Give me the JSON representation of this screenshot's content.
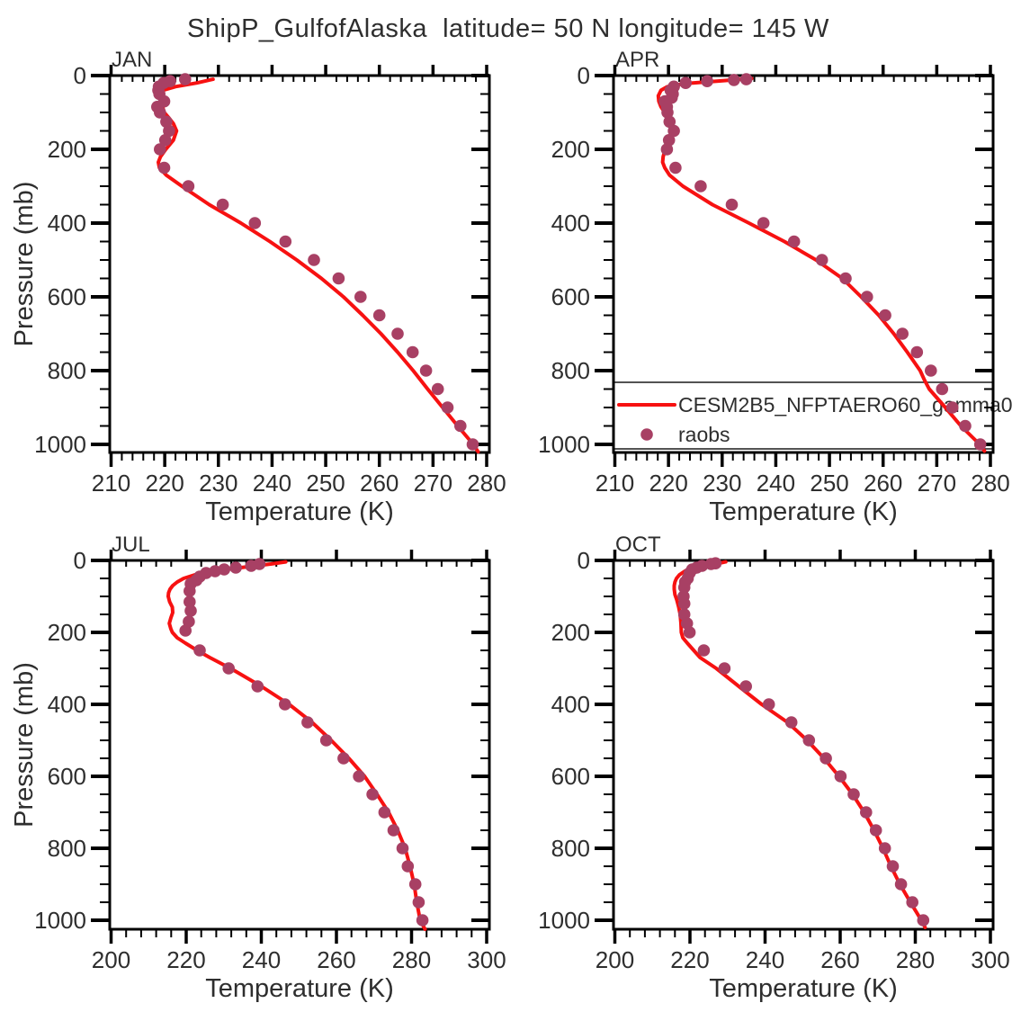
{
  "chart_data": {
    "type": "line",
    "title": "ShipP_GulfofAlaska  latitude= 50 N longitude= 145 W",
    "xlabel": "Temperature (K)",
    "ylabel": "Pressure (mb)",
    "colors": {
      "model_line": "#f71111",
      "raobs_marker": "#a84064",
      "text": "#2e2e2e",
      "axis": "#000000"
    },
    "y_axis": {
      "min": 0,
      "max": 1000,
      "inverted": true,
      "major_ticks": [
        0,
        200,
        400,
        600,
        800,
        1000
      ],
      "minor_step": 50
    },
    "legend": {
      "position": "inside-APR-panel-bottom",
      "entries": [
        {
          "label": "CESM2B5_NFPTAERO60_gamma0",
          "type": "line",
          "color": "#f71111"
        },
        {
          "label": "raobs",
          "type": "marker",
          "color": "#a84064"
        }
      ]
    },
    "panels": [
      {
        "label": "JAN",
        "x_axis": {
          "min": 210,
          "max": 280,
          "major_ticks": [
            210,
            220,
            230,
            240,
            250,
            260,
            270,
            280
          ],
          "major_step": 10,
          "minor_step": 2
        },
        "model_line": [
          [
            10,
            229.0
          ],
          [
            20,
            226.0
          ],
          [
            30,
            222.0
          ],
          [
            40,
            219.6
          ],
          [
            50,
            219.2
          ],
          [
            60,
            219.4
          ],
          [
            70,
            220.0
          ],
          [
            85,
            219.6
          ],
          [
            100,
            219.9
          ],
          [
            115,
            220.8
          ],
          [
            130,
            221.6
          ],
          [
            150,
            222.2
          ],
          [
            175,
            221.6
          ],
          [
            200,
            220.2
          ],
          [
            220,
            219.2
          ],
          [
            235,
            218.8
          ],
          [
            250,
            219.0
          ],
          [
            270,
            220.3
          ],
          [
            300,
            223.2
          ],
          [
            350,
            228.3
          ],
          [
            400,
            234.2
          ],
          [
            450,
            239.6
          ],
          [
            500,
            244.6
          ],
          [
            550,
            249.2
          ],
          [
            600,
            253.3
          ],
          [
            650,
            256.9
          ],
          [
            700,
            260.3
          ],
          [
            750,
            263.4
          ],
          [
            800,
            266.3
          ],
          [
            850,
            269.0
          ],
          [
            900,
            271.8
          ],
          [
            950,
            274.6
          ],
          [
            1000,
            277.5
          ],
          [
            1020,
            278.4
          ]
        ],
        "raobs": [
          [
            10,
            223.8
          ],
          [
            15,
            221.0
          ],
          [
            20,
            219.8
          ],
          [
            30,
            218.9
          ],
          [
            40,
            218.8
          ],
          [
            50,
            219.0
          ],
          [
            70,
            219.9
          ],
          [
            85,
            218.6
          ],
          [
            100,
            219.1
          ],
          [
            125,
            220.3
          ],
          [
            150,
            220.8
          ],
          [
            175,
            220.1
          ],
          [
            200,
            219.1
          ],
          [
            250,
            219.9
          ],
          [
            300,
            224.4
          ],
          [
            350,
            230.8
          ],
          [
            400,
            236.8
          ],
          [
            450,
            242.5
          ],
          [
            500,
            247.8
          ],
          [
            550,
            252.4
          ],
          [
            600,
            256.5
          ],
          [
            650,
            260.0
          ],
          [
            700,
            263.4
          ],
          [
            750,
            266.2
          ],
          [
            800,
            268.7
          ],
          [
            850,
            270.9
          ],
          [
            900,
            272.7
          ],
          [
            950,
            275.1
          ],
          [
            1000,
            277.4
          ]
        ]
      },
      {
        "label": "APR",
        "x_axis": {
          "min": 210,
          "max": 280,
          "major_ticks": [
            210,
            220,
            230,
            240,
            250,
            260,
            270,
            280
          ],
          "major_step": 10,
          "minor_step": 2
        },
        "model_line": [
          [
            8,
            235.5
          ],
          [
            15,
            229.0
          ],
          [
            20,
            224.5
          ],
          [
            25,
            221.5
          ],
          [
            30,
            219.8
          ],
          [
            40,
            218.6
          ],
          [
            55,
            218.1
          ],
          [
            70,
            218.2
          ],
          [
            85,
            218.6
          ],
          [
            100,
            219.3
          ],
          [
            115,
            220.0
          ],
          [
            135,
            220.6
          ],
          [
            150,
            220.7
          ],
          [
            165,
            220.5
          ],
          [
            180,
            220.2
          ],
          [
            200,
            219.4
          ],
          [
            220,
            219.0
          ],
          [
            235,
            218.9
          ],
          [
            250,
            219.3
          ],
          [
            270,
            220.2
          ],
          [
            300,
            222.7
          ],
          [
            350,
            228.2
          ],
          [
            400,
            235.0
          ],
          [
            450,
            241.6
          ],
          [
            500,
            247.5
          ],
          [
            550,
            252.4
          ],
          [
            600,
            255.9
          ],
          [
            650,
            259.2
          ],
          [
            700,
            262.0
          ],
          [
            750,
            264.5
          ],
          [
            800,
            266.9
          ],
          [
            825,
            267.7
          ],
          [
            850,
            268.6
          ],
          [
            900,
            271.6
          ],
          [
            950,
            274.5
          ],
          [
            1000,
            278.0
          ],
          [
            1018,
            278.9
          ]
        ],
        "raobs": [
          [
            10,
            234.5
          ],
          [
            12,
            232.2
          ],
          [
            15,
            227.2
          ],
          [
            20,
            223.2
          ],
          [
            30,
            221.0
          ],
          [
            40,
            220.4
          ],
          [
            50,
            220.8
          ],
          [
            60,
            220.6
          ],
          [
            70,
            219.3
          ],
          [
            85,
            219.7
          ],
          [
            100,
            219.8
          ],
          [
            125,
            220.2
          ],
          [
            150,
            221.0
          ],
          [
            175,
            220.1
          ],
          [
            200,
            219.7
          ],
          [
            250,
            221.3
          ],
          [
            300,
            226.0
          ],
          [
            350,
            231.8
          ],
          [
            400,
            237.7
          ],
          [
            450,
            243.4
          ],
          [
            500,
            248.6
          ],
          [
            550,
            253.0
          ],
          [
            600,
            257.0
          ],
          [
            650,
            260.4
          ],
          [
            700,
            263.6
          ],
          [
            750,
            266.3
          ],
          [
            800,
            268.9
          ],
          [
            850,
            271.0
          ],
          [
            900,
            272.9
          ],
          [
            950,
            275.3
          ],
          [
            1000,
            278.1
          ]
        ]
      },
      {
        "label": "JUL",
        "x_axis": {
          "min": 200,
          "max": 300,
          "major_ticks": [
            200,
            220,
            240,
            260,
            280,
            300
          ],
          "major_step": 20,
          "minor_step": 4
        },
        "model_line": [
          [
            4,
            246.5
          ],
          [
            10,
            242.5
          ],
          [
            15,
            238.5
          ],
          [
            20,
            234.5
          ],
          [
            25,
            230.5
          ],
          [
            30,
            227.0
          ],
          [
            40,
            222.3
          ],
          [
            50,
            219.3
          ],
          [
            60,
            217.6
          ],
          [
            70,
            216.4
          ],
          [
            80,
            215.7
          ],
          [
            90,
            215.3
          ],
          [
            100,
            215.2
          ],
          [
            115,
            215.6
          ],
          [
            130,
            216.3
          ],
          [
            145,
            216.4
          ],
          [
            160,
            215.9
          ],
          [
            175,
            215.5
          ],
          [
            190,
            215.9
          ],
          [
            200,
            216.3
          ],
          [
            215,
            217.6
          ],
          [
            230,
            219.8
          ],
          [
            250,
            222.9
          ],
          [
            270,
            226.3
          ],
          [
            300,
            231.8
          ],
          [
            350,
            240.0
          ],
          [
            400,
            247.4
          ],
          [
            450,
            253.5
          ],
          [
            500,
            258.6
          ],
          [
            550,
            263.3
          ],
          [
            600,
            267.5
          ],
          [
            650,
            270.8
          ],
          [
            700,
            273.9
          ],
          [
            750,
            276.3
          ],
          [
            800,
            278.3
          ],
          [
            850,
            279.6
          ],
          [
            900,
            280.7
          ],
          [
            950,
            281.4
          ],
          [
            1000,
            282.3
          ],
          [
            1025,
            283.6
          ]
        ],
        "raobs": [
          [
            10,
            239.5
          ],
          [
            15,
            237.3
          ],
          [
            20,
            233.2
          ],
          [
            25,
            230.1
          ],
          [
            30,
            227.7
          ],
          [
            35,
            225.3
          ],
          [
            45,
            223.6
          ],
          [
            55,
            222.7
          ],
          [
            65,
            221.2
          ],
          [
            85,
            220.9
          ],
          [
            115,
            220.9
          ],
          [
            140,
            221.2
          ],
          [
            170,
            220.7
          ],
          [
            195,
            219.8
          ],
          [
            250,
            223.6
          ],
          [
            300,
            231.3
          ],
          [
            350,
            239.0
          ],
          [
            400,
            246.3
          ],
          [
            450,
            252.3
          ],
          [
            500,
            257.3
          ],
          [
            550,
            261.9
          ],
          [
            600,
            266.0
          ],
          [
            650,
            269.6
          ],
          [
            700,
            272.8
          ],
          [
            750,
            275.2
          ],
          [
            800,
            277.6
          ],
          [
            850,
            279.0
          ],
          [
            900,
            281.0
          ],
          [
            950,
            281.9
          ],
          [
            1000,
            282.9
          ]
        ]
      },
      {
        "label": "OCT",
        "x_axis": {
          "min": 200,
          "max": 300,
          "major_ticks": [
            200,
            220,
            240,
            260,
            280,
            300
          ],
          "major_step": 20,
          "minor_step": 4
        },
        "model_line": [
          [
            4,
            229.5
          ],
          [
            10,
            226.8
          ],
          [
            15,
            223.8
          ],
          [
            20,
            221.4
          ],
          [
            25,
            219.7
          ],
          [
            30,
            218.6
          ],
          [
            40,
            217.2
          ],
          [
            50,
            216.4
          ],
          [
            60,
            216.0
          ],
          [
            70,
            215.8
          ],
          [
            80,
            215.8
          ],
          [
            95,
            216.0
          ],
          [
            110,
            216.5
          ],
          [
            130,
            217.0
          ],
          [
            150,
            217.4
          ],
          [
            175,
            217.6
          ],
          [
            200,
            217.7
          ],
          [
            215,
            218.1
          ],
          [
            230,
            219.3
          ],
          [
            250,
            221.0
          ],
          [
            270,
            222.7
          ],
          [
            300,
            227.0
          ],
          [
            350,
            233.0
          ],
          [
            400,
            239.1
          ],
          [
            450,
            246.0
          ],
          [
            500,
            251.2
          ],
          [
            550,
            255.7
          ],
          [
            600,
            259.7
          ],
          [
            650,
            263.3
          ],
          [
            700,
            266.4
          ],
          [
            750,
            269.0
          ],
          [
            800,
            271.4
          ],
          [
            850,
            273.5
          ],
          [
            900,
            275.9
          ],
          [
            950,
            278.7
          ],
          [
            1000,
            281.6
          ],
          [
            1020,
            282.6
          ]
        ],
        "raobs": [
          [
            8,
            226.8
          ],
          [
            10,
            225.6
          ],
          [
            15,
            223.2
          ],
          [
            20,
            221.8
          ],
          [
            25,
            220.6
          ],
          [
            35,
            219.9
          ],
          [
            50,
            219.4
          ],
          [
            60,
            218.7
          ],
          [
            75,
            218.5
          ],
          [
            100,
            218.3
          ],
          [
            120,
            218.5
          ],
          [
            150,
            218.5
          ],
          [
            175,
            219.2
          ],
          [
            200,
            219.9
          ],
          [
            250,
            223.7
          ],
          [
            300,
            229.2
          ],
          [
            350,
            234.9
          ],
          [
            400,
            241.0
          ],
          [
            450,
            247.0
          ],
          [
            500,
            251.7
          ],
          [
            550,
            256.2
          ],
          [
            600,
            260.1
          ],
          [
            650,
            263.6
          ],
          [
            700,
            266.9
          ],
          [
            750,
            269.5
          ],
          [
            800,
            271.9
          ],
          [
            850,
            274.0
          ],
          [
            900,
            276.2
          ],
          [
            950,
            279.2
          ],
          [
            1000,
            282.1
          ]
        ]
      }
    ]
  }
}
